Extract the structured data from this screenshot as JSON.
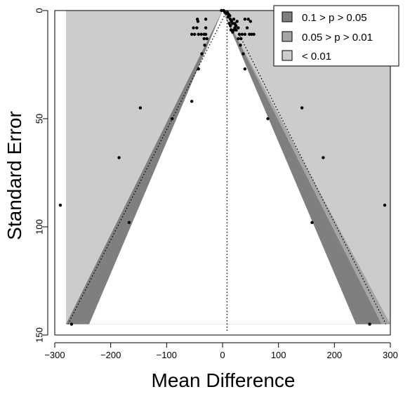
{
  "chart_data": {
    "type": "scatter",
    "subtype": "contour-enhanced funnel plot",
    "title": "",
    "xlabel": "Mean Difference",
    "ylabel": "Standard Error",
    "xlim": [
      -300,
      300
    ],
    "ylim": [
      150,
      0
    ],
    "y_axis_reversed": true,
    "x_ticks": [
      -300,
      -200,
      -100,
      0,
      100,
      200,
      300
    ],
    "y_ticks": [
      0,
      50,
      100,
      150
    ],
    "x_tick_labels": [
      "−300",
      "−200",
      "−100",
      "0",
      "100",
      "200",
      "300"
    ],
    "y_tick_labels": [
      "0",
      "50",
      "100",
      "150"
    ],
    "grid": false,
    "center_line_x": 8,
    "funnel_se_max": 145,
    "z_values": {
      "p10": 1.645,
      "p05": 1.96,
      "p01": 2.576
    },
    "legend": {
      "placement": "top-right",
      "entries": [
        {
          "label": "0.1 > p > 0.05",
          "color": "#7f7f7f"
        },
        {
          "label": "0.05 > p > 0.01",
          "color": "#a5a5a5"
        },
        {
          "label": "< 0.01",
          "color": "#cccccc"
        }
      ]
    },
    "colors": {
      "region_p10": "#7f7f7f",
      "region_p05": "#a5a5a5",
      "region_p01": "#cccccc",
      "point": "#000000",
      "background": "#ffffff"
    },
    "points": [
      {
        "x": -290,
        "y": 90
      },
      {
        "x": 290,
        "y": 90
      },
      {
        "x": -270,
        "y": 145
      },
      {
        "x": 263,
        "y": 145
      },
      {
        "x": -185,
        "y": 68
      },
      {
        "x": 180,
        "y": 68
      },
      {
        "x": -167,
        "y": 98
      },
      {
        "x": 160,
        "y": 98
      },
      {
        "x": -147,
        "y": 45
      },
      {
        "x": 142,
        "y": 45
      },
      {
        "x": -90,
        "y": 50
      },
      {
        "x": 81,
        "y": 50
      },
      {
        "x": -55,
        "y": 42
      },
      {
        "x": -43,
        "y": 27
      },
      {
        "x": 40,
        "y": 27
      },
      {
        "x": -37,
        "y": 20
      },
      {
        "x": 37,
        "y": 20
      },
      {
        "x": -32,
        "y": 16
      },
      {
        "x": 32,
        "y": 16
      },
      {
        "x": -55,
        "y": 11
      },
      {
        "x": -50,
        "y": 11
      },
      {
        "x": -43,
        "y": 11
      },
      {
        "x": -38,
        "y": 11
      },
      {
        "x": -33,
        "y": 11
      },
      {
        "x": -30,
        "y": 11
      },
      {
        "x": -33,
        "y": 13
      },
      {
        "x": -28,
        "y": 13
      },
      {
        "x": 30,
        "y": 11
      },
      {
        "x": 35,
        "y": 11
      },
      {
        "x": 40,
        "y": 11
      },
      {
        "x": 48,
        "y": 11
      },
      {
        "x": 52,
        "y": 11
      },
      {
        "x": 56,
        "y": 11
      },
      {
        "x": 28,
        "y": 13
      },
      {
        "x": 33,
        "y": 13
      },
      {
        "x": -52,
        "y": 8
      },
      {
        "x": -46,
        "y": 8
      },
      {
        "x": -30,
        "y": 8
      },
      {
        "x": 22,
        "y": 8
      },
      {
        "x": 28,
        "y": 8
      },
      {
        "x": 44,
        "y": 8
      },
      {
        "x": -45,
        "y": 4
      },
      {
        "x": -30,
        "y": 4
      },
      {
        "x": -44,
        "y": 5
      },
      {
        "x": 10,
        "y": 3
      },
      {
        "x": 14,
        "y": 4
      },
      {
        "x": 16,
        "y": 5
      },
      {
        "x": 20,
        "y": 4
      },
      {
        "x": 26,
        "y": 5
      },
      {
        "x": 40,
        "y": 4
      },
      {
        "x": 46,
        "y": 4
      },
      {
        "x": 50,
        "y": 5
      },
      {
        "x": 12,
        "y": 6
      },
      {
        "x": 18,
        "y": 6
      },
      {
        "x": 22,
        "y": 6
      },
      {
        "x": 14,
        "y": 7
      },
      {
        "x": 24,
        "y": 7
      },
      {
        "x": 15,
        "y": 9
      },
      {
        "x": 20,
        "y": 9
      },
      {
        "x": 24,
        "y": 9
      },
      {
        "x": 18,
        "y": 10
      },
      {
        "x": -2,
        "y": 0
      },
      {
        "x": 2,
        "y": 0
      },
      {
        "x": 4,
        "y": 0.8
      },
      {
        "x": 7,
        "y": 1.5
      },
      {
        "x": 9,
        "y": 1
      },
      {
        "x": 11,
        "y": 1.8
      },
      {
        "x": 13,
        "y": 2.4
      }
    ]
  }
}
